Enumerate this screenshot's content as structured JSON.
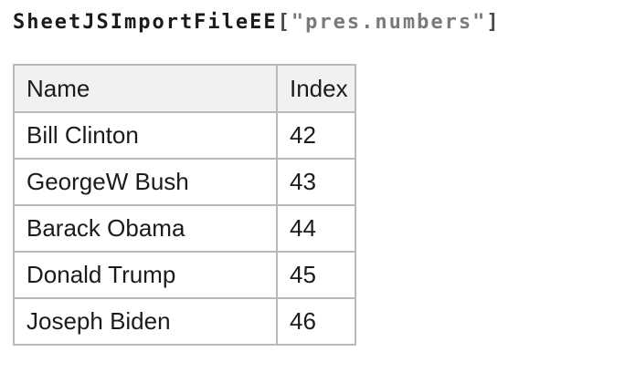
{
  "title": {
    "function_name": "SheetJSImportFileEE",
    "open_bracket": "[",
    "file_string": "\"pres.numbers\"",
    "close_bracket": "]"
  },
  "table": {
    "headers": [
      "Name",
      "Index"
    ],
    "rows": [
      {
        "name": "Bill Clinton",
        "index": "42"
      },
      {
        "name": "GeorgeW Bush",
        "index": "43"
      },
      {
        "name": "Barack Obama",
        "index": "44"
      },
      {
        "name": "Donald Trump",
        "index": "45"
      },
      {
        "name": "Joseph Biden",
        "index": "46"
      }
    ]
  },
  "colors": {
    "text": "#1b1b1b",
    "bracket": "#4a4a4a",
    "string_gray": "#7a7a7a",
    "header_background": "#f1f1f1",
    "table_border": "#b9b9b9"
  }
}
